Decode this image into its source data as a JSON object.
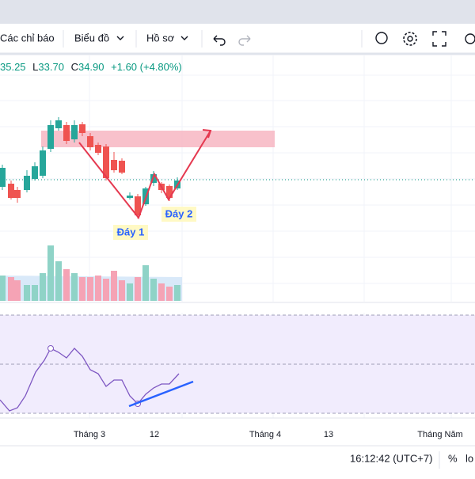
{
  "toolbar": {
    "indicators": "Các chỉ báo",
    "chart": "Biểu đồ",
    "profile": "Hồ sơ"
  },
  "legend": {
    "high": "35.25",
    "low_label": "L",
    "low": "33.70",
    "close_label": "C",
    "close": "34.90",
    "change": "+1.60 (+4.80%)"
  },
  "annotations": {
    "bottom1": "Đáy 1",
    "bottom2": "Đáy 2"
  },
  "x_axis": [
    "Tháng 3",
    "12",
    "Tháng 4",
    "13",
    "Tháng Năm"
  ],
  "status_bar": {
    "time": "16:12:42 (UTC+7)",
    "percent": "%",
    "log": "lo"
  }
}
